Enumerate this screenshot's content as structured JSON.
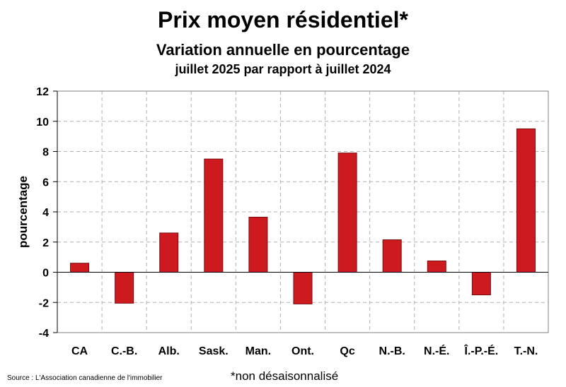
{
  "chart_data": {
    "type": "bar",
    "title": "Prix moyen résidentiel*",
    "subtitle": "Variation annuelle en pourcentage",
    "subtitle2": "juillet 2025 par rapport à juillet 2024",
    "ylabel": "pourcentage",
    "xlabel": "",
    "categories": [
      "CA",
      "C.-B.",
      "Alb.",
      "Sask.",
      "Man.",
      "Ont.",
      "Qc",
      "N.-B.",
      "N.-É.",
      "Î.-P.-É.",
      "T.-N."
    ],
    "values": [
      0.6,
      -2.05,
      2.6,
      7.5,
      3.65,
      -2.1,
      7.9,
      2.15,
      0.75,
      -1.5,
      9.5
    ],
    "ylim": [
      -4,
      12
    ],
    "yticks": [
      -4,
      -2,
      0,
      2,
      4,
      6,
      8,
      10,
      12
    ],
    "grid": true,
    "bar_color": "#cc1a1f",
    "bar_edge_color": "#7a0c10"
  },
  "footer": {
    "source": "Source : L'Association canadienne de l'immobilier",
    "note": "*non désaisonnalisé"
  }
}
